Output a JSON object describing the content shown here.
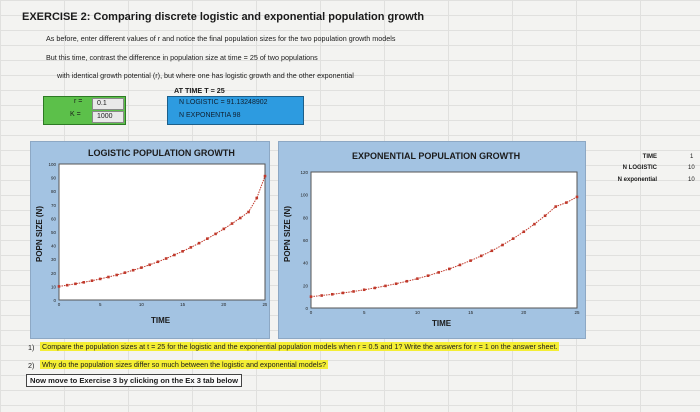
{
  "exercise": {
    "title": "EXERCISE 2: Comparing discrete logistic and exponential population growth",
    "line1": "As before, enter different values of r and notice the final population sizes for the two population growth models",
    "line2": "But this time, contrast the difference in population size at time = 25 of two populations",
    "line3": "with identical growth potential (r), but where one has logistic growth and the other exponential",
    "at_time": "AT TIME T = 25"
  },
  "params": {
    "r_label": "r =",
    "r_value": "0.1",
    "k_label": "K =",
    "k_value": "1000"
  },
  "results": {
    "logistic": "N LOGISTIC =   91.13248902",
    "exponential": "N EXPONENTIA 98"
  },
  "logistic_chart": {
    "title": "LOGISTIC POPULATION GROWTH",
    "ylabel": "POPN SIZE (N)",
    "xlabel": "TIME",
    "yticks": [
      "100",
      "90",
      "80",
      "70",
      "60",
      "50",
      "40",
      "30",
      "20",
      "10",
      "0"
    ],
    "xticks": [
      "0",
      "5",
      "10",
      "15",
      "20",
      "25"
    ]
  },
  "exponential_chart": {
    "title": "EXPONENTIAL POPULATION GROWTH",
    "ylabel": "POPN SIZE (N)",
    "xlabel": "TIME",
    "yticks": [
      "120",
      "100",
      "80",
      "60",
      "40",
      "20",
      "0"
    ],
    "xticks": [
      "0",
      "5",
      "10",
      "15",
      "20",
      "25"
    ]
  },
  "side_table": {
    "time_label": "TIME",
    "logistic_label": "N LOGISTIC",
    "exponential_label": "N exponential",
    "time_value": "1",
    "logistic_value": "10",
    "exponential_value": "10"
  },
  "questions": [
    {
      "num": "1)",
      "text": "Compare the population sizes at t = 25 for the logistic and the exponential population models when r = 0.5 and 1? Write the answers for r = 1 on the answer sheet."
    },
    {
      "num": "2)",
      "text": "Why do the population sizes differ so much between the logistic and exponential models?"
    }
  ],
  "nav_note": "Now move to Exercise 3 by clicking on the Ex 3 tab below",
  "colors": {
    "chart_bg": "#a3c3e2",
    "series": "#c0392b",
    "param_box": "#5cc04a",
    "result_box": "#2d9be0",
    "highlight": "#f4ee34"
  },
  "chart_data": [
    {
      "type": "line",
      "title": "LOGISTIC POPULATION GROWTH",
      "xlabel": "TIME",
      "ylabel": "POPN SIZE (N)",
      "xlim": [
        0,
        25
      ],
      "ylim": [
        0,
        100
      ],
      "x": [
        0,
        1,
        2,
        3,
        4,
        5,
        6,
        7,
        8,
        9,
        10,
        11,
        12,
        13,
        14,
        15,
        16,
        17,
        18,
        19,
        20,
        21,
        22,
        23,
        24,
        25
      ],
      "series": [
        {
          "values": [
            10,
            10.9,
            11.9,
            13.0,
            14.2,
            15.5,
            16.9,
            18.4,
            20.1,
            21.9,
            23.8,
            25.9,
            28.1,
            30.5,
            33.1,
            35.8,
            38.7,
            41.8,
            45.1,
            48.6,
            52.3,
            56.2,
            60.3,
            64.7,
            75,
            91.1
          ]
        }
      ]
    },
    {
      "type": "line",
      "title": "EXPONENTIAL POPULATION GROWTH",
      "xlabel": "TIME",
      "ylabel": "POPN SIZE (N)",
      "xlim": [
        0,
        25
      ],
      "ylim": [
        0,
        120
      ],
      "x": [
        0,
        1,
        2,
        3,
        4,
        5,
        6,
        7,
        8,
        9,
        10,
        11,
        12,
        13,
        14,
        15,
        16,
        17,
        18,
        19,
        20,
        21,
        22,
        23,
        24,
        25
      ],
      "series": [
        {
          "values": [
            10,
            11,
            12.1,
            13.3,
            14.6,
            16.1,
            17.7,
            19.5,
            21.4,
            23.6,
            25.9,
            28.5,
            31.4,
            34.5,
            38,
            41.8,
            46,
            50.5,
            55.6,
            61.2,
            67.3,
            74,
            81.4,
            89.5,
            93,
            98
          ]
        }
      ]
    }
  ]
}
